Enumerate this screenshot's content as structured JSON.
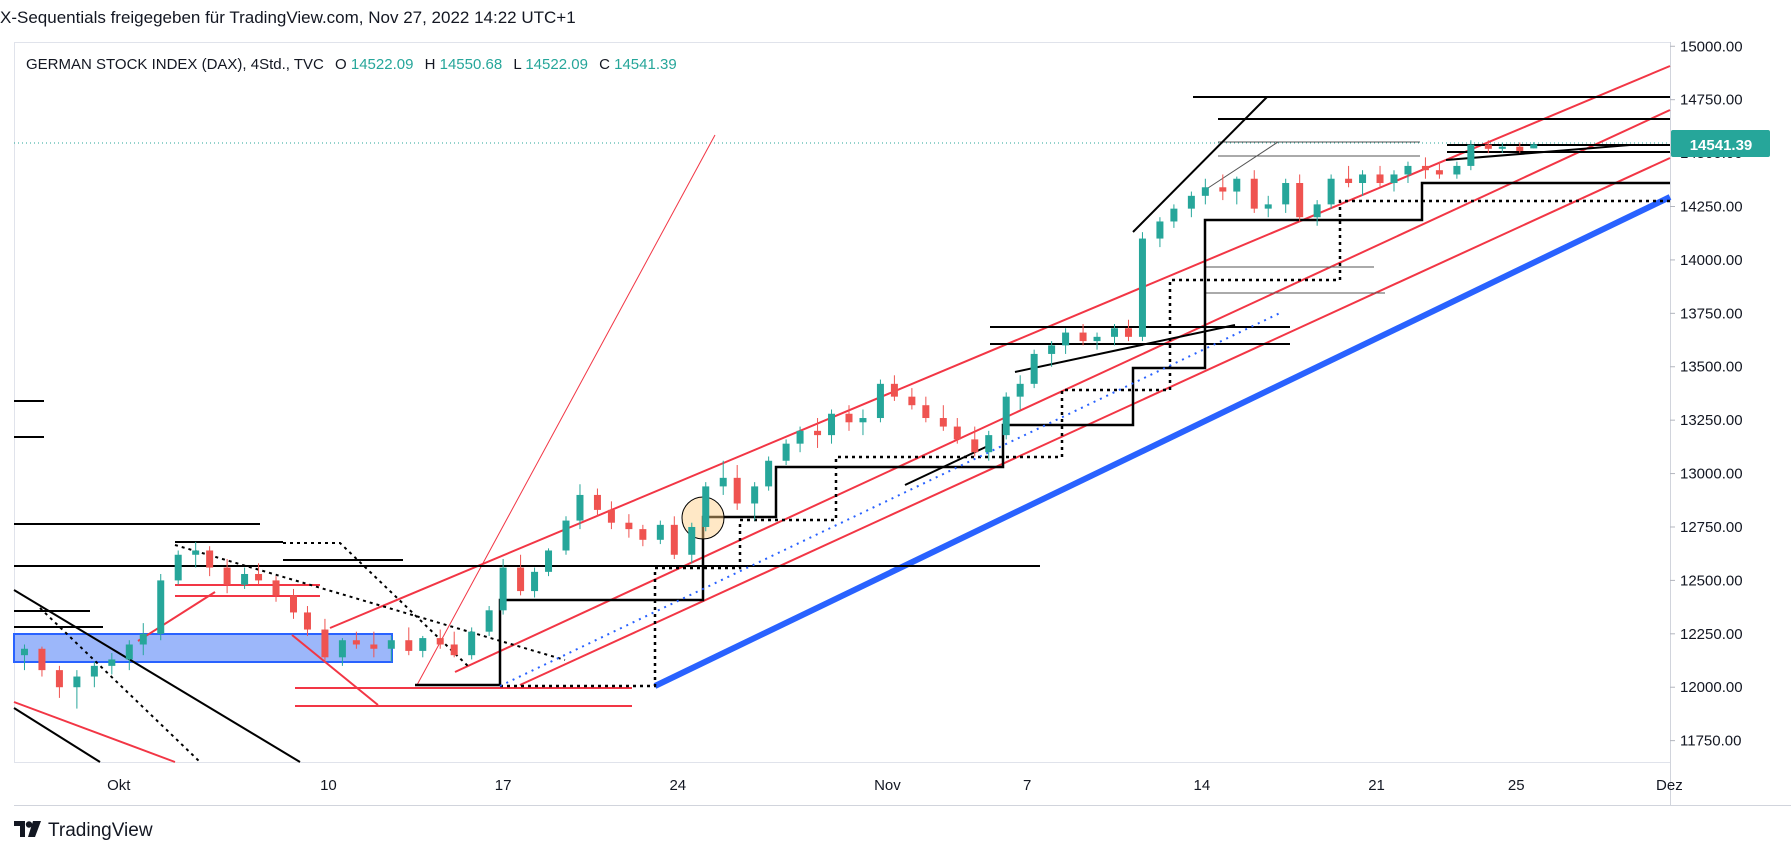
{
  "header": {
    "publisher": "X-Sequentials freigegeben für TradingView.com, Nov 27, 2022 14:22 UTC+1"
  },
  "legend": {
    "symbol": "GERMAN STOCK INDEX (DAX), 4Std., TVC",
    "o_label": "O",
    "o_value": "14522.09",
    "h_label": "H",
    "h_value": "14550.68",
    "l_label": "L",
    "l_value": "14522.09",
    "c_label": "C",
    "c_value": "14541.39"
  },
  "price_tag": "14541.39",
  "footer": {
    "brand": "TradingView"
  },
  "colors": {
    "up": "#26a69a",
    "down": "#ef5350",
    "trend_red": "#f23645",
    "blue_line": "#2962ff",
    "box_fill": "#7b9ff8",
    "black": "#000000"
  },
  "chart_data": {
    "type": "candlestick",
    "symbol": "GERMAN STOCK INDEX (DAX)",
    "interval": "4Std.",
    "x_ticks": [
      {
        "label": "Okt",
        "x": 1
      },
      {
        "label": "10",
        "x": 7
      },
      {
        "label": "17",
        "x": 12
      },
      {
        "label": "24",
        "x": 17
      },
      {
        "label": "Nov",
        "x": 23
      },
      {
        "label": "7",
        "x": 27
      },
      {
        "label": "14",
        "x": 32
      },
      {
        "label": "21",
        "x": 37
      },
      {
        "label": "25",
        "x": 41
      },
      {
        "label": "Dez",
        "x": 45
      }
    ],
    "y_ticks": [
      11750,
      12000,
      12250,
      12500,
      12750,
      13000,
      13250,
      13500,
      13750,
      14000,
      14250,
      14500,
      14750,
      15000
    ],
    "y_range": [
      11650,
      15020
    ],
    "x_range": [
      -2,
      45.4
    ],
    "current_price": 14541.39,
    "candles_per_day": 2,
    "candles": [
      [
        -1.7,
        12150,
        12200,
        12080,
        12180
      ],
      [
        -1.2,
        12180,
        12190,
        12050,
        12080
      ],
      [
        -0.7,
        12080,
        12100,
        11950,
        12000
      ],
      [
        -0.2,
        12000,
        12080,
        11900,
        12050
      ],
      [
        0.3,
        12050,
        12120,
        12000,
        12100
      ],
      [
        0.8,
        12100,
        12160,
        12060,
        12130
      ],
      [
        1.3,
        12130,
        12220,
        12080,
        12200
      ],
      [
        1.7,
        12200,
        12300,
        12150,
        12250
      ],
      [
        2.2,
        12250,
        12530,
        12220,
        12500
      ],
      [
        2.7,
        12500,
        12640,
        12480,
        12620
      ],
      [
        3.2,
        12620,
        12680,
        12560,
        12640
      ],
      [
        3.6,
        12640,
        12660,
        12520,
        12560
      ],
      [
        4.1,
        12560,
        12600,
        12440,
        12480
      ],
      [
        4.6,
        12480,
        12560,
        12460,
        12530
      ],
      [
        5.0,
        12530,
        12580,
        12480,
        12500
      ],
      [
        5.5,
        12500,
        12520,
        12400,
        12430
      ],
      [
        6.0,
        12430,
        12460,
        12320,
        12350
      ],
      [
        6.4,
        12350,
        12380,
        12240,
        12270
      ],
      [
        6.9,
        12270,
        12320,
        12120,
        12140
      ],
      [
        7.4,
        12140,
        12230,
        12100,
        12220
      ],
      [
        7.8,
        12220,
        12260,
        12180,
        12200
      ],
      [
        8.3,
        12200,
        12260,
        12140,
        12180
      ],
      [
        8.8,
        12180,
        12240,
        12120,
        12220
      ],
      [
        9.3,
        12220,
        12280,
        12150,
        12170
      ],
      [
        9.7,
        12170,
        12240,
        12140,
        12230
      ],
      [
        10.2,
        12230,
        12270,
        12180,
        12200
      ],
      [
        10.6,
        12200,
        12260,
        12140,
        12150
      ],
      [
        11.1,
        12150,
        12280,
        12130,
        12260
      ],
      [
        11.6,
        12260,
        12380,
        12240,
        12360
      ],
      [
        12.0,
        12360,
        12600,
        12340,
        12560
      ],
      [
        12.5,
        12560,
        12620,
        12430,
        12450
      ],
      [
        12.9,
        12450,
        12560,
        12420,
        12540
      ],
      [
        13.3,
        12540,
        12650,
        12520,
        12640
      ],
      [
        13.8,
        12640,
        12800,
        12620,
        12780
      ],
      [
        14.2,
        12780,
        12950,
        12740,
        12900
      ],
      [
        14.7,
        12900,
        12930,
        12800,
        12830
      ],
      [
        15.1,
        12830,
        12870,
        12740,
        12770
      ],
      [
        15.6,
        12770,
        12810,
        12700,
        12740
      ],
      [
        16.0,
        12740,
        12760,
        12660,
        12690
      ],
      [
        16.5,
        12690,
        12780,
        12670,
        12760
      ],
      [
        16.9,
        12760,
        12800,
        12600,
        12620
      ],
      [
        17.4,
        12620,
        12770,
        12580,
        12750
      ],
      [
        17.8,
        12750,
        12960,
        12730,
        12940
      ],
      [
        18.3,
        12940,
        13060,
        12900,
        12980
      ],
      [
        18.7,
        12980,
        13040,
        12830,
        12860
      ],
      [
        19.2,
        12860,
        12960,
        12780,
        12940
      ],
      [
        19.6,
        12940,
        13080,
        12920,
        13060
      ],
      [
        20.1,
        13060,
        13160,
        13040,
        13140
      ],
      [
        20.5,
        13140,
        13220,
        13100,
        13200
      ],
      [
        21.0,
        13200,
        13260,
        13120,
        13180
      ],
      [
        21.4,
        13180,
        13300,
        13140,
        13280
      ],
      [
        21.9,
        13280,
        13320,
        13200,
        13240
      ],
      [
        22.3,
        13240,
        13300,
        13180,
        13260
      ],
      [
        22.8,
        13260,
        13440,
        13240,
        13420
      ],
      [
        23.2,
        13420,
        13460,
        13340,
        13360
      ],
      [
        23.7,
        13360,
        13400,
        13300,
        13320
      ],
      [
        24.1,
        13320,
        13360,
        13240,
        13260
      ],
      [
        24.6,
        13260,
        13320,
        13200,
        13220
      ],
      [
        25.0,
        13220,
        13260,
        13140,
        13160
      ],
      [
        25.5,
        13160,
        13220,
        13080,
        13100
      ],
      [
        25.9,
        13100,
        13200,
        13060,
        13180
      ],
      [
        26.4,
        13180,
        13380,
        13160,
        13360
      ],
      [
        26.8,
        13360,
        13460,
        13300,
        13420
      ],
      [
        27.2,
        13420,
        13580,
        13400,
        13560
      ],
      [
        27.7,
        13560,
        13620,
        13500,
        13600
      ],
      [
        28.1,
        13600,
        13680,
        13560,
        13660
      ],
      [
        28.6,
        13660,
        13700,
        13600,
        13620
      ],
      [
        29.0,
        13620,
        13660,
        13580,
        13640
      ],
      [
        29.5,
        13640,
        13700,
        13600,
        13680
      ],
      [
        29.9,
        13680,
        13720,
        13620,
        13640
      ],
      [
        30.3,
        13640,
        14130,
        13620,
        14100
      ],
      [
        30.8,
        14100,
        14200,
        14060,
        14180
      ],
      [
        31.2,
        14180,
        14260,
        14150,
        14240
      ],
      [
        31.7,
        14240,
        14320,
        14200,
        14300
      ],
      [
        32.1,
        14300,
        14380,
        14260,
        14340
      ],
      [
        32.6,
        14340,
        14400,
        14280,
        14320
      ],
      [
        33.0,
        14320,
        14390,
        14260,
        14380
      ],
      [
        33.5,
        14380,
        14420,
        14220,
        14240
      ],
      [
        33.9,
        14240,
        14300,
        14200,
        14260
      ],
      [
        34.4,
        14260,
        14380,
        14220,
        14360
      ],
      [
        34.8,
        14360,
        14400,
        14180,
        14200
      ],
      [
        35.3,
        14200,
        14280,
        14160,
        14260
      ],
      [
        35.7,
        14260,
        14400,
        14240,
        14380
      ],
      [
        36.2,
        14380,
        14440,
        14340,
        14360
      ],
      [
        36.6,
        14360,
        14420,
        14300,
        14400
      ],
      [
        37.1,
        14400,
        14440,
        14340,
        14360
      ],
      [
        37.5,
        14360,
        14420,
        14320,
        14400
      ],
      [
        37.9,
        14400,
        14460,
        14360,
        14440
      ],
      [
        38.4,
        14440,
        14480,
        14380,
        14420
      ],
      [
        38.8,
        14420,
        14460,
        14380,
        14400
      ],
      [
        39.3,
        14400,
        14460,
        14380,
        14440
      ],
      [
        39.7,
        14440,
        14560,
        14420,
        14540
      ],
      [
        40.2,
        14540,
        14560,
        14500,
        14520
      ],
      [
        40.6,
        14520,
        14550,
        14500,
        14530
      ],
      [
        41.1,
        14530,
        14550,
        14500,
        14510
      ],
      [
        41.5,
        14522.09,
        14550.68,
        14522.09,
        14541.39
      ]
    ]
  }
}
